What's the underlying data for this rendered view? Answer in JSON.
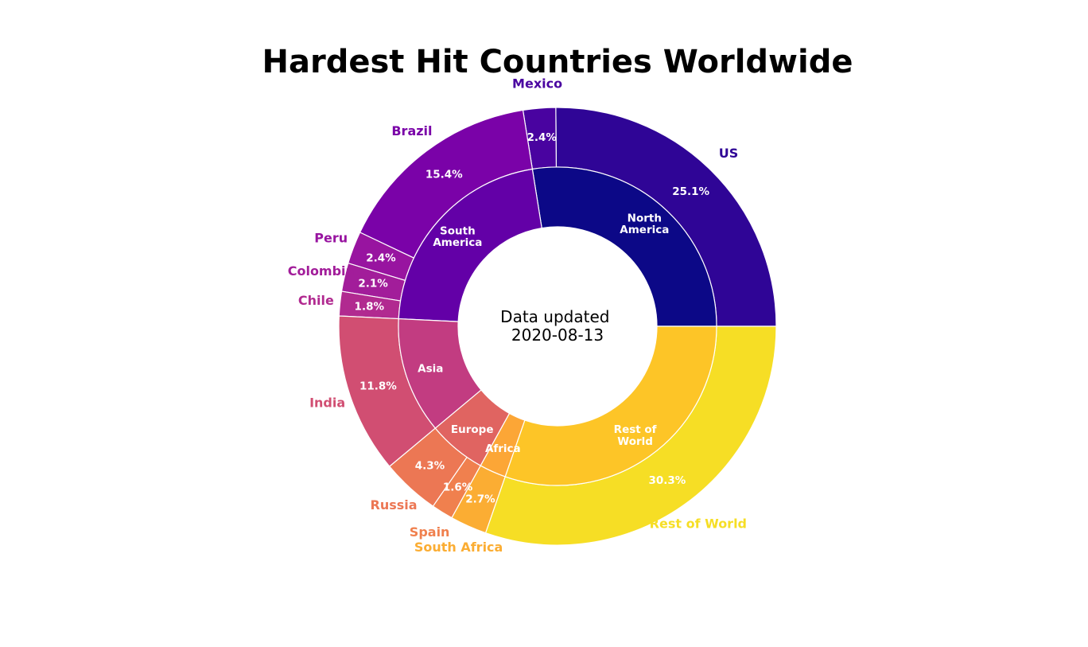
{
  "chart_data": {
    "type": "pie",
    "subtype": "nested-donut",
    "title": "Hardest Hit Countries Worldwide",
    "center_text": [
      "Data updated",
      "2020-08-13"
    ],
    "outer_ring": [
      {
        "label": "US",
        "value": 25.1,
        "pct_text": "25.1%",
        "color": "#2f0596"
      },
      {
        "label": "Mexico",
        "value": 2.4,
        "pct_text": "2.4%",
        "color": "#4903a0"
      },
      {
        "label": "Brazil",
        "value": 15.4,
        "pct_text": "15.4%",
        "color": "#7a02a8"
      },
      {
        "label": "Peru",
        "value": 2.4,
        "pct_text": "2.4%",
        "color": "#9814a0"
      },
      {
        "label": "Colombia",
        "value": 2.1,
        "pct_text": "2.1%",
        "color": "#a21d9a"
      },
      {
        "label": "Chile",
        "value": 1.8,
        "pct_text": "1.8%",
        "color": "#b12a90"
      },
      {
        "label": "India",
        "value": 11.8,
        "pct_text": "11.8%",
        "color": "#d14e72"
      },
      {
        "label": "Russia",
        "value": 4.3,
        "pct_text": "4.3%",
        "color": "#ec7754"
      },
      {
        "label": "Spain",
        "value": 1.6,
        "pct_text": "1.6%",
        "color": "#f0804e"
      },
      {
        "label": "South Africa",
        "value": 2.7,
        "pct_text": "2.7%",
        "color": "#fbad33"
      },
      {
        "label": "Rest of World",
        "value": 30.3,
        "pct_text": "30.3%",
        "color": "#f6de25"
      }
    ],
    "inner_ring": [
      {
        "label": "North\nAmerica",
        "value": 27.5,
        "color": "#0c0887"
      },
      {
        "label": "South\nAmerica",
        "value": 21.7,
        "color": "#6300a7"
      },
      {
        "label": "Asia",
        "value": 11.8,
        "color": "#c23c81"
      },
      {
        "label": "Europe",
        "value": 5.9,
        "color": "#e06461"
      },
      {
        "label": "Africa",
        "value": 2.7,
        "color": "#fca636"
      },
      {
        "label": "Rest of\nWorld",
        "value": 30.3,
        "color": "#fdc527"
      }
    ]
  }
}
